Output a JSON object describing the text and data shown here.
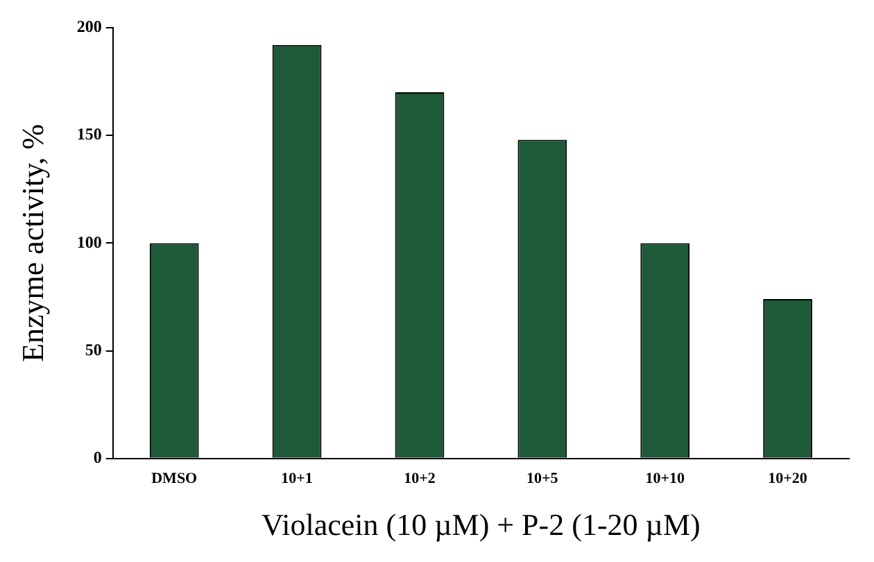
{
  "chart_data": {
    "type": "bar",
    "xlabel": "Violacein (10 µM) + P-2 (1-20 µM)",
    "ylabel": "Enzyme activity, %",
    "categories": [
      "DMSO",
      "10+1",
      "10+2",
      "10+5",
      "10+10",
      "10+20"
    ],
    "values": [
      100,
      192,
      170,
      148,
      100,
      74
    ],
    "color": "#1e5a38",
    "ylim": [
      0,
      200
    ],
    "yticks": [
      0,
      50,
      100,
      150,
      200
    ],
    "grid": false,
    "legend": false
  }
}
